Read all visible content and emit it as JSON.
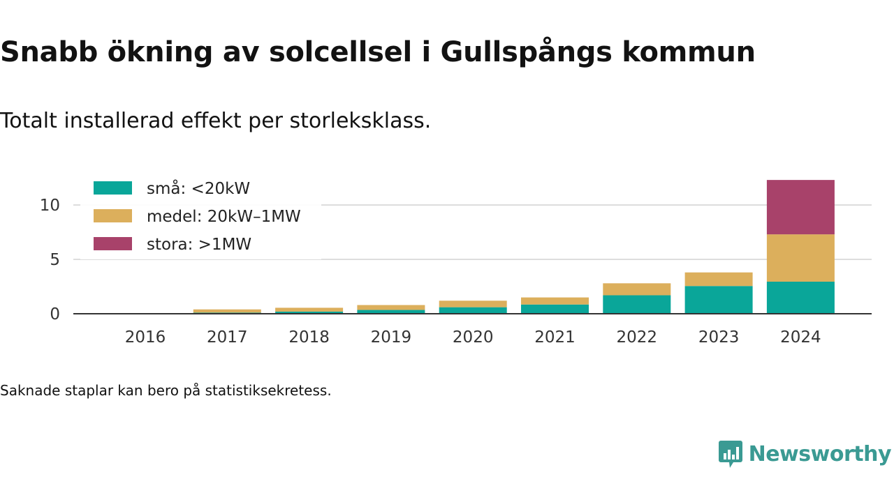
{
  "title": "Snabb ökning av solcellsel i Gullspångs kommun",
  "subtitle": "Totalt installerad effekt per storleksklass.",
  "footnote": "Saknade staplar kan bero på statistiksekretess.",
  "brand": {
    "name": "Newsworthy",
    "color": "#3a9a93",
    "logo_icon": "bar-chart-speech-bubble-icon"
  },
  "chart_data": {
    "type": "bar",
    "stacked": true,
    "categories": [
      "2016",
      "2017",
      "2018",
      "2019",
      "2020",
      "2021",
      "2022",
      "2023",
      "2024"
    ],
    "series": [
      {
        "name": "små: <20kW",
        "color": "#0aa699",
        "values": [
          0,
          0.1,
          0.2,
          0.35,
          0.6,
          0.85,
          1.7,
          2.55,
          2.95
        ]
      },
      {
        "name": "medel: 20kW–1MW",
        "color": "#dcaf5c",
        "values": [
          0,
          0.3,
          0.35,
          0.45,
          0.6,
          0.65,
          1.1,
          1.25,
          4.35
        ]
      },
      {
        "name": "stora: >1MW",
        "color": "#a8426a",
        "values": [
          0,
          0,
          0,
          0,
          0,
          0,
          0,
          0,
          5.0
        ]
      }
    ],
    "yticks": [
      0,
      5,
      10
    ],
    "ylim": [
      0,
      12.5
    ],
    "grid": true,
    "legend_position": "top-left"
  }
}
